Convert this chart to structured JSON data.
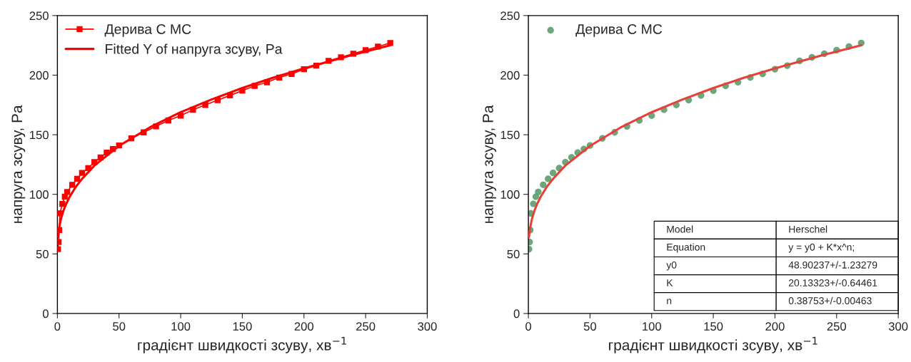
{
  "chart_data": [
    {
      "type": "line",
      "xlabel": "градієнт швидкості зсуву, хв$^{−1}$",
      "ylabel": "напруга зсуву, Pa",
      "xlim": [
        0,
        300
      ],
      "ylim": [
        0,
        250
      ],
      "xticks": [
        0,
        50,
        100,
        150,
        200,
        250,
        300
      ],
      "yticks": [
        0,
        50,
        100,
        150,
        200,
        250
      ],
      "grid": false,
      "legend": "top left",
      "series": [
        {
          "name": "Дерива С МС",
          "color": "#ff0000",
          "marker": "square",
          "x": [
            0.5,
            1,
            1.5,
            2,
            4,
            6,
            8,
            12,
            16,
            20,
            25,
            30,
            35,
            40,
            45,
            50,
            60,
            70,
            80,
            90,
            100,
            110,
            120,
            130,
            140,
            150,
            160,
            170,
            180,
            190,
            200,
            210,
            220,
            230,
            240,
            250,
            260,
            270
          ],
          "values": [
            54,
            60,
            70,
            84,
            92,
            98,
            102,
            108,
            113,
            118,
            122,
            127,
            131,
            135,
            138,
            141,
            147,
            152,
            157,
            162,
            166,
            171,
            175,
            179,
            183,
            187,
            191,
            194,
            198,
            201,
            205,
            208,
            212,
            215,
            218,
            221,
            224,
            227
          ]
        },
        {
          "name": "Fitted Y of напруга зсуву, Pa",
          "color": "#ff0000",
          "marker": "none",
          "x": [
            0.5,
            1,
            2,
            3,
            5,
            7,
            10,
            15,
            20,
            30,
            50,
            75,
            100,
            125,
            150,
            175,
            200,
            240,
            270
          ],
          "values": [
            64,
            69,
            75,
            79.7,
            86.5,
            91.7,
            98,
            106.4,
            113,
            124.1,
            140.6,
            156.2,
            168.9,
            179.6,
            189.2,
            197.9,
            205.7,
            217.2,
            225.1
          ]
        }
      ]
    },
    {
      "type": "scatter",
      "xlabel": "градієнт швидкості зсуву, хв$^{−1}$",
      "ylabel": "напруга зсуву, Pa",
      "xlim": [
        0,
        300
      ],
      "ylim": [
        0,
        250
      ],
      "xticks": [
        0,
        50,
        100,
        150,
        200,
        250,
        300
      ],
      "yticks": [
        0,
        50,
        100,
        150,
        200,
        250
      ],
      "grid": false,
      "legend": "top left",
      "annotations": [
        "Model",
        "Herschel",
        "Equation",
        "y = y0 + K*x^n;",
        "y0",
        "48.90237+/-1.23279",
        "K",
        "20.13323+/-0.64461",
        "n",
        "0.38753+/-0.00463"
      ],
      "series": [
        {
          "name": "Дерива С МС",
          "color": "#5a9e6e",
          "marker": "circle",
          "x": [
            0.5,
            1,
            1.5,
            2,
            4,
            6,
            8,
            12,
            16,
            20,
            25,
            30,
            35,
            40,
            45,
            50,
            60,
            70,
            80,
            90,
            100,
            110,
            120,
            130,
            140,
            150,
            160,
            170,
            180,
            190,
            200,
            210,
            220,
            230,
            240,
            250,
            260,
            270
          ],
          "values": [
            54,
            60,
            70,
            84,
            92,
            98,
            102,
            108,
            113,
            118,
            122,
            127,
            131,
            135,
            138,
            141,
            147,
            152,
            157,
            162,
            166,
            171,
            175,
            179,
            183,
            187,
            191,
            194,
            198,
            201,
            205,
            208,
            212,
            215,
            218,
            221,
            224,
            227
          ]
        },
        {
          "type": "line",
          "color": "#e8403a",
          "marker": "none",
          "x": [
            0.5,
            1,
            2,
            3,
            5,
            7,
            10,
            15,
            20,
            30,
            50,
            75,
            100,
            125,
            150,
            175,
            200,
            240,
            270
          ],
          "values": [
            64,
            69,
            75,
            79.7,
            86.5,
            91.7,
            98,
            106.4,
            113,
            124.1,
            140.6,
            156.2,
            168.9,
            179.6,
            189.2,
            197.9,
            205.7,
            217.2,
            225.1
          ]
        }
      ]
    }
  ]
}
